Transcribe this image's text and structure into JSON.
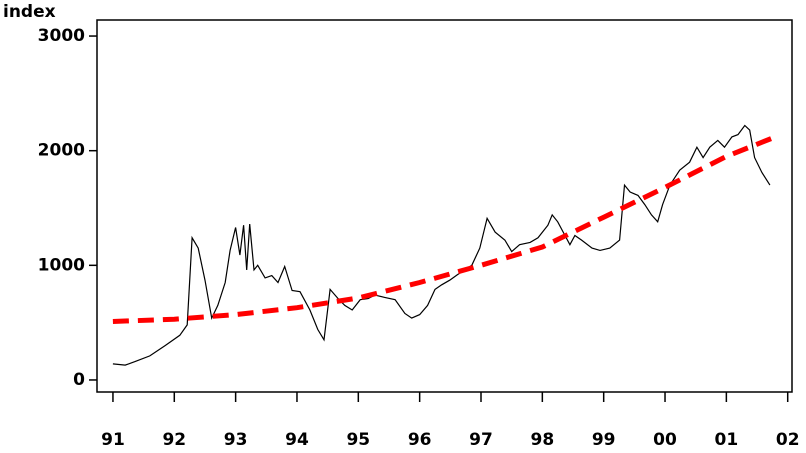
{
  "chart_data": {
    "type": "line",
    "y_label": "index",
    "series": [
      {
        "color": "#000000",
        "dashed": false,
        "x": [
          1991.0,
          1991.2,
          1991.36,
          1991.6,
          1991.85,
          1992.09,
          1992.21,
          1992.29,
          1992.39,
          1992.5,
          1992.61,
          1992.71,
          1992.83,
          1992.91,
          1993.0,
          1993.07,
          1993.13,
          1993.18,
          1993.23,
          1993.3,
          1993.36,
          1993.48,
          1993.59,
          1993.69,
          1993.8,
          1993.92,
          1994.05,
          1994.21,
          1994.34,
          1994.44,
          1994.54,
          1994.67,
          1994.78,
          1994.9,
          1995.03,
          1995.16,
          1995.27,
          1995.43,
          1995.6,
          1995.76,
          1995.87,
          1996.0,
          1996.13,
          1996.25,
          1996.36,
          1996.49,
          1996.62,
          1996.74,
          1996.85,
          1996.98,
          1997.1,
          1997.23,
          1997.39,
          1997.5,
          1997.63,
          1997.8,
          1997.93,
          1998.09,
          1998.16,
          1998.25,
          1998.37,
          1998.45,
          1998.53,
          1998.64,
          1998.81,
          1998.94,
          1999.1,
          1999.26,
          1999.34,
          1999.43,
          1999.56,
          1999.67,
          1999.78,
          1999.88,
          1999.96,
          2000.08,
          2000.24,
          2000.4,
          2000.52,
          2000.62,
          2000.73,
          2000.86,
          2000.97,
          2001.09,
          2001.19,
          2001.3,
          2001.38,
          2001.46,
          2001.58,
          2001.71
        ],
        "values": [
          140,
          130,
          160,
          210,
          300,
          390,
          480,
          1240,
          1150,
          870,
          540,
          650,
          850,
          1130,
          1330,
          1090,
          1350,
          960,
          1360,
          960,
          1000,
          890,
          910,
          850,
          990,
          780,
          770,
          610,
          440,
          350,
          790,
          710,
          650,
          610,
          700,
          710,
          740,
          720,
          700,
          580,
          540,
          570,
          650,
          790,
          830,
          870,
          920,
          960,
          1000,
          1150,
          1410,
          1290,
          1220,
          1120,
          1180,
          1200,
          1240,
          1350,
          1440,
          1380,
          1260,
          1180,
          1260,
          1220,
          1150,
          1130,
          1150,
          1220,
          1700,
          1640,
          1610,
          1530,
          1440,
          1380,
          1530,
          1700,
          1830,
          1900,
          2030,
          1940,
          2030,
          2090,
          2030,
          2120,
          2140,
          2220,
          2180,
          1940,
          1810,
          1700
        ]
      },
      {
        "color": "#ff0000",
        "dashed": true,
        "x": [
          1991,
          1992,
          1993,
          1994,
          1995,
          1996,
          1997,
          1998,
          1999,
          2000,
          2001,
          2001.75
        ],
        "values": [
          510,
          530,
          570,
          630,
          715,
          850,
          1000,
          1160,
          1420,
          1680,
          1950,
          2110
        ]
      }
    ],
    "xlim": [
      1990.74,
      2002.07
    ],
    "xticks": [
      {
        "value": 1991,
        "label": "91"
      },
      {
        "value": 1992,
        "label": "92"
      },
      {
        "value": 1993,
        "label": "93"
      },
      {
        "value": 1994,
        "label": "94"
      },
      {
        "value": 1995,
        "label": "95"
      },
      {
        "value": 1996,
        "label": "96"
      },
      {
        "value": 1997,
        "label": "97"
      },
      {
        "value": 1998,
        "label": "98"
      },
      {
        "value": 1999,
        "label": "99"
      },
      {
        "value": 2000,
        "label": "00"
      },
      {
        "value": 2001,
        "label": "01"
      },
      {
        "value": 2002,
        "label": "02"
      }
    ],
    "ylim": [
      -105,
      3140
    ],
    "yticks": [
      0,
      1000,
      2000,
      3000
    ]
  }
}
